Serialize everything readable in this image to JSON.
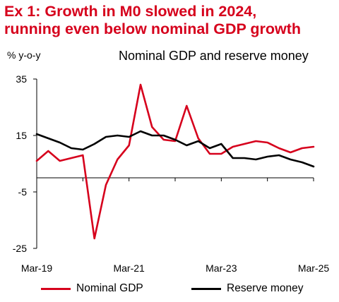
{
  "title_line1": "Ex 1: Growth in M0 slowed in 2024,",
  "title_line2": "running even below nominal GDP growth",
  "colors": {
    "title": "#d6001c",
    "nominal_gdp": "#d6001c",
    "reserve_money": "#000000"
  },
  "chart_data": {
    "type": "line",
    "title": "Nominal GDP and reserve money",
    "ylabel": "% y-o-y",
    "xlabel": "",
    "ylim": [
      -25,
      35
    ],
    "yticks": [
      35,
      15,
      -5,
      -25
    ],
    "xlim": [
      "Mar-19",
      "Mar-25"
    ],
    "xtick_labels": [
      "Mar-19",
      "Mar-21",
      "Mar-23",
      "Mar-25"
    ],
    "grid": false,
    "legend_position": "bottom",
    "series": [
      {
        "name": "Nominal GDP",
        "color": "#d6001c",
        "x": [
          "Mar-19",
          "Jun-19",
          "Sep-19",
          "Dec-19",
          "Mar-20",
          "Jun-20",
          "Sep-20",
          "Dec-20",
          "Mar-21",
          "Jun-21",
          "Sep-21",
          "Dec-21",
          "Mar-22",
          "Jun-22",
          "Sep-22",
          "Dec-22",
          "Mar-23",
          "Jun-23",
          "Sep-23",
          "Dec-23",
          "Mar-24",
          "Jun-24",
          "Sep-24",
          "Dec-24",
          "Mar-25"
        ],
        "values": [
          6.0,
          9.5,
          6.0,
          7.0,
          8.0,
          -21.5,
          -2.5,
          6.5,
          11.5,
          33.0,
          18.0,
          13.5,
          13.0,
          25.5,
          14.0,
          8.5,
          8.5,
          11.0,
          12.0,
          13.0,
          12.5,
          10.5,
          9.0,
          10.5,
          11.0
        ]
      },
      {
        "name": "Reserve money",
        "color": "#000000",
        "x": [
          "Mar-19",
          "Jun-19",
          "Sep-19",
          "Dec-19",
          "Mar-20",
          "Jun-20",
          "Sep-20",
          "Dec-20",
          "Mar-21",
          "Jun-21",
          "Sep-21",
          "Dec-21",
          "Mar-22",
          "Jun-22",
          "Sep-22",
          "Dec-22",
          "Mar-23",
          "Jun-23",
          "Sep-23",
          "Dec-23",
          "Mar-24",
          "Jun-24",
          "Sep-24",
          "Dec-24",
          "Mar-25"
        ],
        "values": [
          15.5,
          14.0,
          12.5,
          10.5,
          10.0,
          12.0,
          14.5,
          15.0,
          14.5,
          16.5,
          15.0,
          15.0,
          13.5,
          11.5,
          13.0,
          10.5,
          12.0,
          7.0,
          7.0,
          6.5,
          7.5,
          8.0,
          6.5,
          5.5,
          4.0
        ]
      }
    ]
  }
}
